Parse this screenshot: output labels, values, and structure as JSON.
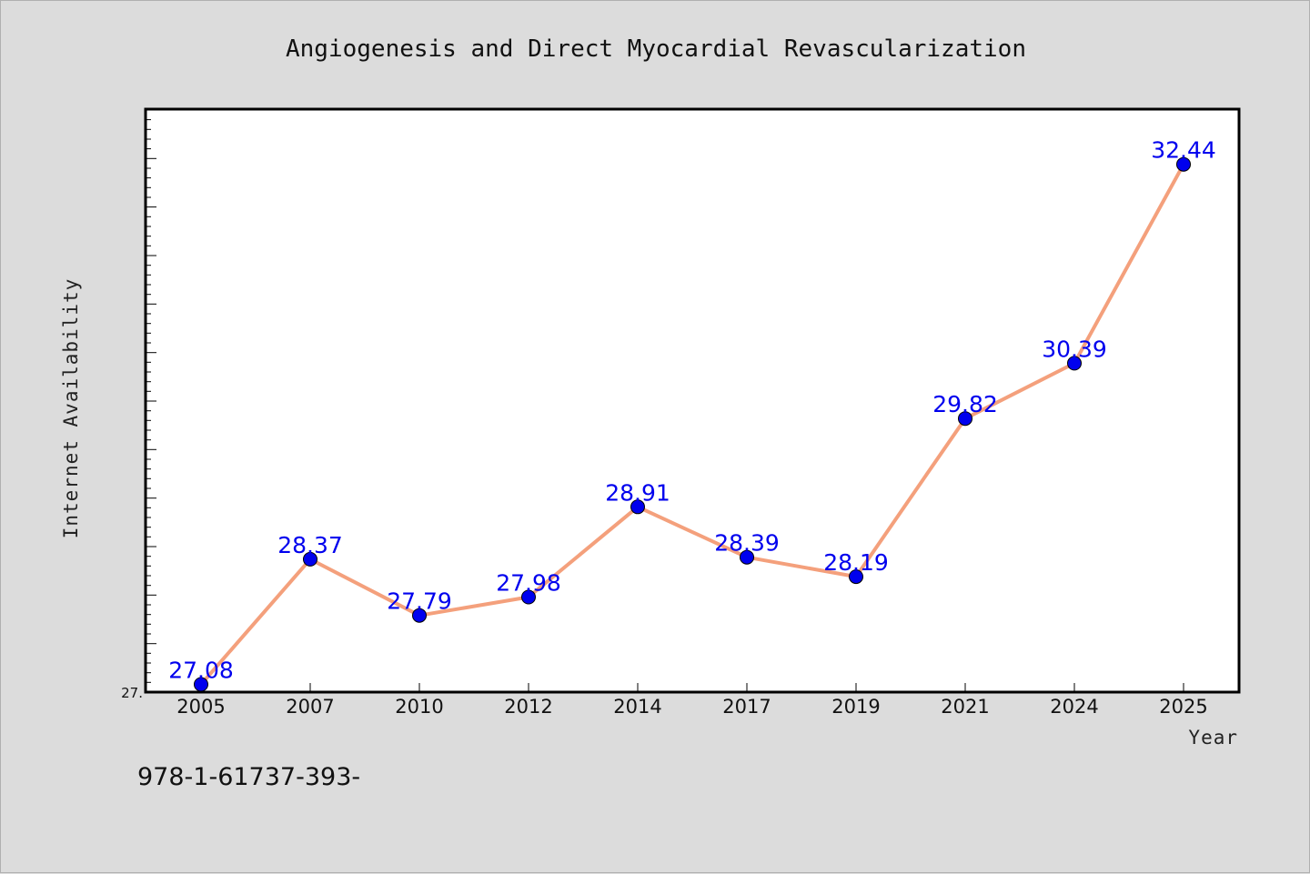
{
  "chart_data": {
    "type": "line",
    "title": "Angiogenesis and Direct Myocardial Revascularization",
    "xlabel": "Year",
    "ylabel": "Internet Availability",
    "categories": [
      "2005",
      "2007",
      "2010",
      "2012",
      "2014",
      "2017",
      "2019",
      "2021",
      "2024",
      "2025"
    ],
    "series": [
      {
        "values": [
          27.08,
          28.37,
          27.79,
          27.98,
          28.91,
          28.39,
          28.19,
          29.82,
          30.39,
          32.44
        ],
        "labels": [
          "27.08",
          "28.37",
          "27.79",
          "27.98",
          "28.91",
          "28.39",
          "28.19",
          "29.82",
          "30.39",
          "32.44"
        ]
      }
    ],
    "ylim": [
      27.0,
      33.0
    ],
    "y_tick_labels": [
      {
        "value": 27.0,
        "text": "27."
      }
    ],
    "grid": false,
    "line_color": "#f4a07c",
    "marker_color": "#0000ee",
    "label_color": "#0000ee"
  },
  "footnote": "978-1-61737-393-"
}
